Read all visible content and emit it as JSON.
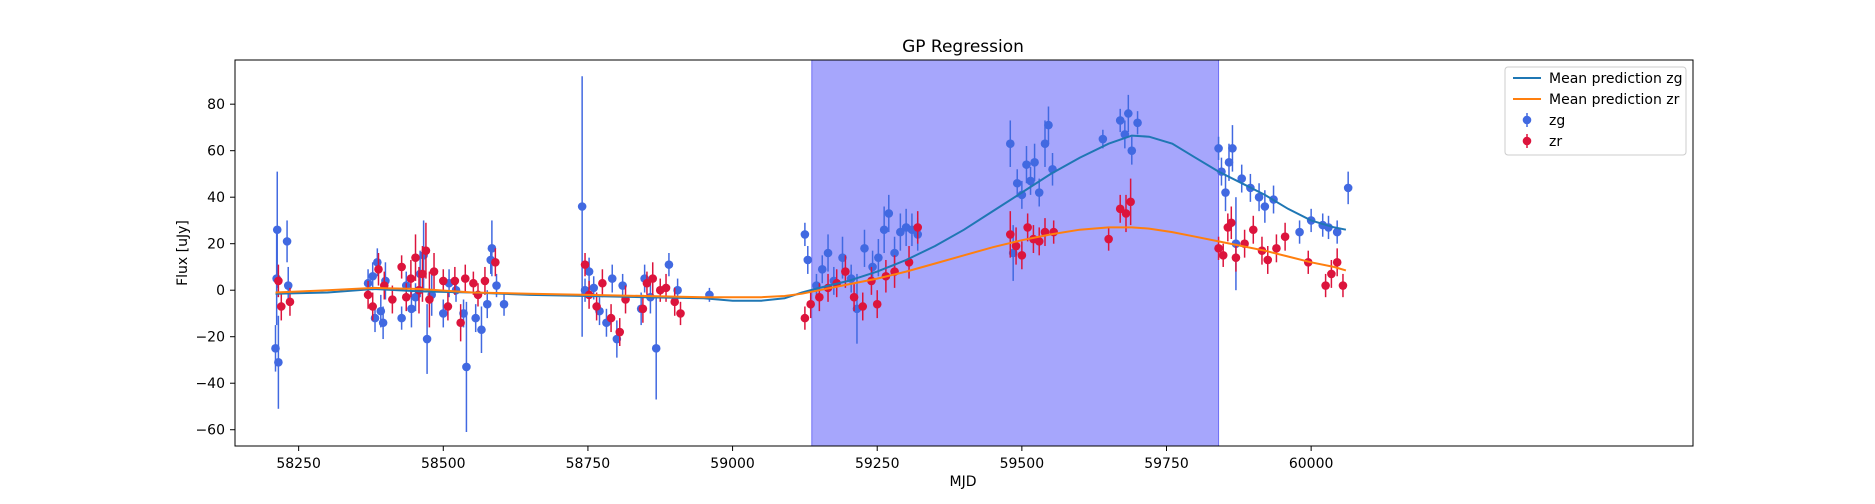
{
  "chart_data": {
    "type": "scatter",
    "title": "GP Regression",
    "xlabel": "MJD",
    "ylabel": "Flux [uJy]",
    "xlim": [
      58140,
      60660
    ],
    "ylim": [
      -67,
      99
    ],
    "xticks": [
      58250,
      58500,
      58750,
      59000,
      59250,
      59500,
      59750,
      60000
    ],
    "yticks": [
      -60,
      -40,
      -20,
      0,
      20,
      40,
      60,
      80
    ],
    "grid": false,
    "legend_position": "top-right",
    "shaded_region": {
      "x_start": 59137,
      "x_end": 59840,
      "color": "#a6a6fc"
    },
    "colors": {
      "zg_line": "#1f77b4",
      "zr_line": "#ff7f0e",
      "zg_points": "#4169e1",
      "zr_points": "#dc143c"
    },
    "legend": [
      {
        "label": "Mean prediction zg",
        "kind": "line",
        "color": "#1f77b4"
      },
      {
        "label": "Mean prediction zr",
        "kind": "line",
        "color": "#ff7f0e"
      },
      {
        "label": "zg",
        "kind": "errorbar",
        "color": "#4169e1"
      },
      {
        "label": "zr",
        "kind": "errorbar",
        "color": "#dc143c"
      }
    ],
    "lines": [
      {
        "name": "Mean prediction zg",
        "color": "#1f77b4",
        "x": [
          58210,
          58300,
          58380,
          58460,
          58550,
          58650,
          58750,
          58850,
          58950,
          59000,
          59050,
          59090,
          59120,
          59150,
          59200,
          59250,
          59300,
          59350,
          59400,
          59450,
          59500,
          59550,
          59600,
          59650,
          59690,
          59720,
          59760,
          59800,
          59840,
          59880,
          59920,
          59960,
          60000,
          60040,
          60060
        ],
        "y": [
          -1.5,
          -1,
          0.5,
          -0.5,
          -1,
          -2,
          -2.5,
          -3,
          -3.5,
          -4.5,
          -4.5,
          -3.5,
          -1,
          1,
          4,
          8,
          13,
          19,
          26,
          34,
          42,
          50,
          57,
          63,
          66.5,
          66,
          63,
          57,
          51,
          46,
          41,
          35,
          30,
          27,
          26
        ]
      },
      {
        "name": "Mean prediction zr",
        "color": "#ff7f0e",
        "x": [
          58210,
          58300,
          58380,
          58460,
          58550,
          58650,
          58750,
          58850,
          58950,
          59000,
          59050,
          59090,
          59120,
          59150,
          59200,
          59250,
          59300,
          59350,
          59400,
          59450,
          59500,
          59550,
          59600,
          59650,
          59690,
          59720,
          59760,
          59800,
          59840,
          59880,
          59920,
          59960,
          60000,
          60040,
          60060
        ],
        "y": [
          -1,
          0,
          1,
          0.5,
          -1,
          -1.5,
          -2,
          -2.5,
          -3,
          -3,
          -3,
          -2.5,
          -1.5,
          0,
          2.5,
          5,
          8,
          11.5,
          15,
          18.5,
          21.5,
          24,
          26,
          27,
          27,
          26.5,
          25,
          23,
          21,
          19,
          17,
          14.5,
          12,
          10,
          8.5
        ]
      }
    ],
    "series": [
      {
        "name": "zg",
        "color": "#4169e1",
        "points": [
          [
            58210,
            -25,
            10
          ],
          [
            58212,
            5,
            20
          ],
          [
            58213,
            26,
            25
          ],
          [
            58215,
            -31,
            20
          ],
          [
            58230,
            21,
            9
          ],
          [
            58232,
            2,
            8
          ],
          [
            58370,
            3,
            6
          ],
          [
            58378,
            6,
            6
          ],
          [
            58382,
            -12,
            6
          ],
          [
            58386,
            12,
            6
          ],
          [
            58392,
            -9,
            7
          ],
          [
            58396,
            -14,
            7
          ],
          [
            58400,
            4,
            8
          ],
          [
            58428,
            -12,
            5
          ],
          [
            58436,
            2,
            6
          ],
          [
            58445,
            -8,
            8
          ],
          [
            58452,
            -3,
            6
          ],
          [
            58460,
            7,
            10
          ],
          [
            58466,
            15,
            15
          ],
          [
            58472,
            -21,
            15
          ],
          [
            58480,
            -2,
            9
          ],
          [
            58500,
            -10,
            6
          ],
          [
            58510,
            3,
            6
          ],
          [
            58522,
            0,
            5
          ],
          [
            58535,
            -10,
            6
          ],
          [
            58540,
            -33,
            28
          ],
          [
            58556,
            -12,
            6
          ],
          [
            58566,
            -17,
            10
          ],
          [
            58576,
            -6,
            6
          ],
          [
            58582,
            13,
            6
          ],
          [
            58584,
            18,
            12
          ],
          [
            58592,
            2,
            5
          ],
          [
            58605,
            -6,
            5
          ],
          [
            58740,
            36,
            56
          ],
          [
            58745,
            0,
            5
          ],
          [
            58752,
            8,
            6
          ],
          [
            58760,
            1,
            5
          ],
          [
            58770,
            -9,
            6
          ],
          [
            58782,
            -14,
            6
          ],
          [
            58792,
            5,
            6
          ],
          [
            58800,
            -21,
            8
          ],
          [
            58810,
            2,
            5
          ],
          [
            58842,
            -8,
            7
          ],
          [
            58848,
            5,
            6
          ],
          [
            58858,
            -3,
            7
          ],
          [
            58868,
            -25,
            22
          ],
          [
            58890,
            11,
            5
          ],
          [
            58905,
            0,
            5
          ],
          [
            58960,
            -2,
            3
          ],
          [
            59125,
            24,
            5
          ],
          [
            59130,
            13,
            6
          ],
          [
            59145,
            2,
            5
          ],
          [
            59155,
            9,
            6
          ],
          [
            59165,
            16,
            8
          ],
          [
            59175,
            4,
            6
          ],
          [
            59190,
            14,
            9
          ],
          [
            59205,
            5,
            6
          ],
          [
            59215,
            -8,
            15
          ],
          [
            59228,
            18,
            8
          ],
          [
            59242,
            10,
            7
          ],
          [
            59252,
            14,
            8
          ],
          [
            59262,
            26,
            10
          ],
          [
            59270,
            33,
            8
          ],
          [
            59280,
            16,
            7
          ],
          [
            59290,
            25,
            8
          ],
          [
            59300,
            27,
            8
          ],
          [
            59310,
            26,
            7
          ],
          [
            59320,
            24,
            7
          ],
          [
            59480,
            63,
            10
          ],
          [
            59485,
            16,
            12
          ],
          [
            59492,
            46,
            6
          ],
          [
            59500,
            41,
            6
          ],
          [
            59508,
            54,
            8
          ],
          [
            59515,
            47,
            6
          ],
          [
            59522,
            55,
            8
          ],
          [
            59530,
            42,
            6
          ],
          [
            59540,
            63,
            10
          ],
          [
            59546,
            71,
            8
          ],
          [
            59553,
            52,
            7
          ],
          [
            59640,
            65,
            4
          ],
          [
            59670,
            73,
            5
          ],
          [
            59678,
            67,
            6
          ],
          [
            59684,
            76,
            8
          ],
          [
            59690,
            60,
            6
          ],
          [
            59700,
            72,
            5
          ],
          [
            59840,
            61,
            5
          ],
          [
            59845,
            51,
            6
          ],
          [
            59852,
            42,
            8
          ],
          [
            59858,
            55,
            8
          ],
          [
            59864,
            61,
            10
          ],
          [
            59870,
            20,
            20
          ],
          [
            59880,
            48,
            6
          ],
          [
            59895,
            44,
            6
          ],
          [
            59910,
            40,
            6
          ],
          [
            59920,
            36,
            7
          ],
          [
            59935,
            39,
            6
          ],
          [
            59980,
            25,
            5
          ],
          [
            60000,
            30,
            5
          ],
          [
            60020,
            28,
            5
          ],
          [
            60030,
            27,
            5
          ],
          [
            60045,
            25,
            5
          ],
          [
            60064,
            44,
            7
          ]
        ]
      },
      {
        "name": "zr",
        "color": "#dc143c",
        "points": [
          [
            58215,
            4,
            7
          ],
          [
            58220,
            -7,
            6
          ],
          [
            58235,
            -5,
            6
          ],
          [
            58370,
            -2,
            6
          ],
          [
            58378,
            -7,
            6
          ],
          [
            58388,
            9,
            7
          ],
          [
            58398,
            2,
            6
          ],
          [
            58412,
            -4,
            6
          ],
          [
            58428,
            10,
            5
          ],
          [
            58436,
            -3,
            6
          ],
          [
            58444,
            5,
            8
          ],
          [
            58452,
            14,
            10
          ],
          [
            58458,
            0,
            10
          ],
          [
            58464,
            7,
            12
          ],
          [
            58470,
            17,
            12
          ],
          [
            58476,
            -4,
            12
          ],
          [
            58484,
            8,
            8
          ],
          [
            58500,
            4,
            5
          ],
          [
            58508,
            -7,
            6
          ],
          [
            58520,
            4,
            6
          ],
          [
            58530,
            -14,
            8
          ],
          [
            58538,
            5,
            6
          ],
          [
            58552,
            3,
            5
          ],
          [
            58560,
            -2,
            5
          ],
          [
            58572,
            4,
            6
          ],
          [
            58590,
            12,
            6
          ],
          [
            58745,
            11,
            5
          ],
          [
            58752,
            -2,
            6
          ],
          [
            58765,
            -7,
            6
          ],
          [
            58775,
            3,
            6
          ],
          [
            58790,
            -12,
            6
          ],
          [
            58805,
            -18,
            6
          ],
          [
            58815,
            -4,
            6
          ],
          [
            58845,
            -8,
            6
          ],
          [
            58852,
            3,
            5
          ],
          [
            58862,
            5,
            7
          ],
          [
            58875,
            0,
            5
          ],
          [
            58885,
            1,
            6
          ],
          [
            58900,
            -5,
            6
          ],
          [
            58910,
            -10,
            5
          ],
          [
            59125,
            -12,
            5
          ],
          [
            59135,
            -6,
            6
          ],
          [
            59150,
            -3,
            6
          ],
          [
            59165,
            1,
            6
          ],
          [
            59180,
            3,
            6
          ],
          [
            59195,
            8,
            7
          ],
          [
            59210,
            -3,
            6
          ],
          [
            59225,
            -7,
            6
          ],
          [
            59240,
            4,
            6
          ],
          [
            59250,
            -6,
            6
          ],
          [
            59265,
            6,
            7
          ],
          [
            59280,
            8,
            7
          ],
          [
            59305,
            12,
            7
          ],
          [
            59320,
            27,
            7
          ],
          [
            59480,
            24,
            10
          ],
          [
            59490,
            19,
            8
          ],
          [
            59500,
            15,
            6
          ],
          [
            59510,
            27,
            6
          ],
          [
            59520,
            22,
            6
          ],
          [
            59530,
            21,
            6
          ],
          [
            59540,
            25,
            6
          ],
          [
            59555,
            25,
            5
          ],
          [
            59650,
            22,
            5
          ],
          [
            59670,
            35,
            6
          ],
          [
            59680,
            33,
            8
          ],
          [
            59688,
            38,
            10
          ],
          [
            59840,
            18,
            5
          ],
          [
            59848,
            15,
            5
          ],
          [
            59856,
            27,
            6
          ],
          [
            59862,
            29,
            7
          ],
          [
            59870,
            14,
            6
          ],
          [
            59885,
            20,
            6
          ],
          [
            59900,
            26,
            6
          ],
          [
            59915,
            17,
            6
          ],
          [
            59925,
            13,
            6
          ],
          [
            59940,
            18,
            6
          ],
          [
            59955,
            23,
            6
          ],
          [
            59995,
            12,
            5
          ],
          [
            60025,
            2,
            5
          ],
          [
            60035,
            7,
            6
          ],
          [
            60045,
            12,
            6
          ],
          [
            60055,
            2,
            5
          ]
        ]
      }
    ]
  }
}
